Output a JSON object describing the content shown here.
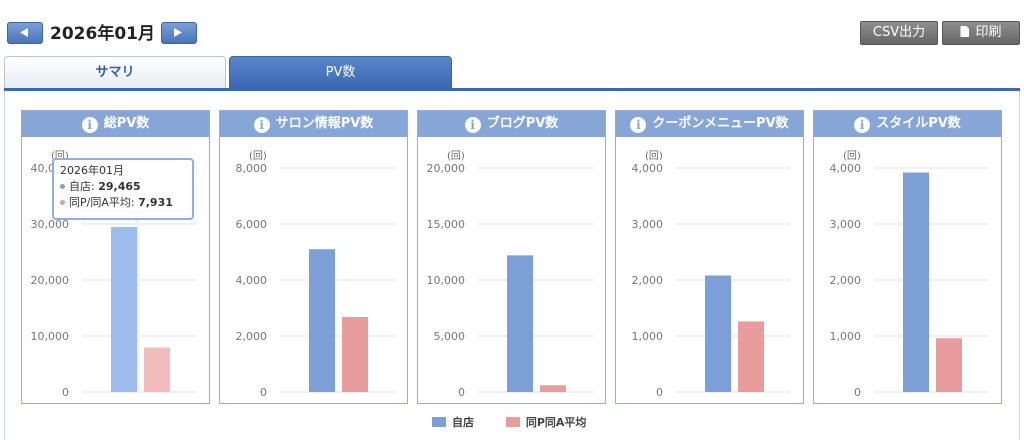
{
  "header": {
    "month": "2026年01月",
    "csv_label": "CSV出力",
    "print_label": "印刷"
  },
  "tabs": [
    {
      "label": "サマリ",
      "active": false
    },
    {
      "label": "PV数",
      "active": true
    }
  ],
  "colors": {
    "self": "#7c9fd7",
    "self_highlight": "#9dbdee",
    "avg": "#e89c9c",
    "avg_highlight": "#f2bcbc",
    "panel_header": "#86a6d8",
    "tab_active": "#3a68b2"
  },
  "chart_data": [
    {
      "type": "bar",
      "title": "総PV数",
      "unit": "(回)",
      "ylim": [
        0,
        40000
      ],
      "yticks": [
        "0",
        "10,000",
        "20,000",
        "30,000",
        "40,000"
      ],
      "categories": [
        "2026年01月"
      ],
      "series": [
        {
          "name": "自店",
          "values": [
            29465
          ]
        },
        {
          "name": "同P/同A平均",
          "values": [
            7931
          ]
        }
      ]
    },
    {
      "type": "bar",
      "title": "サロン情報PV数",
      "unit": "(回)",
      "ylim": [
        0,
        8000
      ],
      "yticks": [
        "0",
        "2,000",
        "4,000",
        "6,000",
        "8,000"
      ],
      "categories": [
        "2026年01月"
      ],
      "series": [
        {
          "name": "自店",
          "values": [
            5100
          ]
        },
        {
          "name": "同P/同A平均",
          "values": [
            2680
          ]
        }
      ]
    },
    {
      "type": "bar",
      "title": "ブログPV数",
      "unit": "(回)",
      "ylim": [
        0,
        20000
      ],
      "yticks": [
        "0",
        "5,000",
        "10,000",
        "15,000",
        "20,000"
      ],
      "categories": [
        "2026年01月"
      ],
      "series": [
        {
          "name": "自店",
          "values": [
            12200
          ]
        },
        {
          "name": "同P/同A平均",
          "values": [
            600
          ]
        }
      ]
    },
    {
      "type": "bar",
      "title": "クーポンメニューPV数",
      "unit": "(回)",
      "ylim": [
        0,
        4000
      ],
      "yticks": [
        "0",
        "1,000",
        "2,000",
        "3,000",
        "4,000"
      ],
      "categories": [
        "2026年01月"
      ],
      "series": [
        {
          "name": "自店",
          "values": [
            2080
          ]
        },
        {
          "name": "同P/同A平均",
          "values": [
            1260
          ]
        }
      ]
    },
    {
      "type": "bar",
      "title": "スタイルPV数",
      "unit": "(回)",
      "ylim": [
        0,
        4000
      ],
      "yticks": [
        "0",
        "1,000",
        "2,000",
        "3,000",
        "4,000"
      ],
      "categories": [
        "2026年01月"
      ],
      "series": [
        {
          "name": "自店",
          "values": [
            3920
          ]
        },
        {
          "name": "同P/同A平均",
          "values": [
            960
          ]
        }
      ]
    }
  ],
  "tooltip": {
    "month": "2026年01月",
    "self_label": "自店: ",
    "self_value": "29,465",
    "avg_label": "同P/同A平均: ",
    "avg_value": "7,931"
  },
  "legend": {
    "self": "自店",
    "avg": "同P同A平均"
  }
}
